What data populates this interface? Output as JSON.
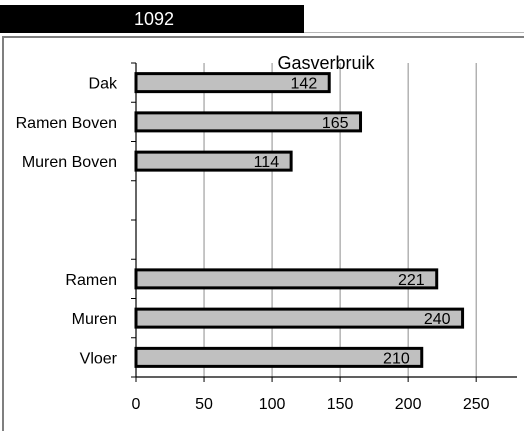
{
  "sheet": {
    "total_value": "1092"
  },
  "chart_data": {
    "type": "bar",
    "orientation": "horizontal",
    "title": "Gasverbruik",
    "categories": [
      "Dak",
      "Ramen Boven",
      "Muren Boven",
      "",
      "",
      "Ramen",
      "Muren",
      "Vloer"
    ],
    "values": [
      142,
      165,
      114,
      null,
      null,
      221,
      240,
      210
    ],
    "xlim": [
      0,
      280
    ],
    "xticks": [
      0,
      50,
      100,
      150,
      200,
      250
    ],
    "grid": true,
    "bar_color": "#c0c0c0",
    "bar_edge_color": "#000000"
  }
}
